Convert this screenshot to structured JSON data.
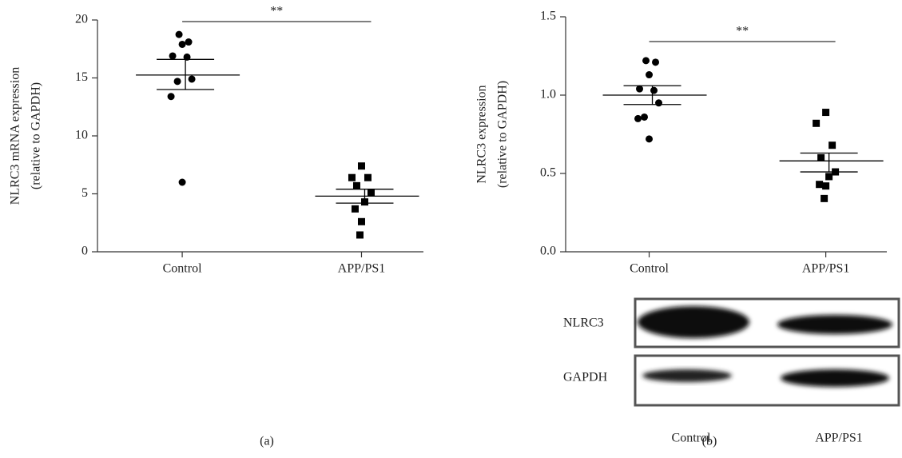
{
  "chart_data": [
    {
      "type": "dotplot",
      "panel_label": "(a)",
      "ylabel": [
        "NLRC3 mRNA expression",
        "(relative to GAPDH)"
      ],
      "categories": [
        "Control",
        "APP/PS1"
      ],
      "markers": [
        "circle",
        "square"
      ],
      "color": "#000000",
      "points": [
        [
          18.75,
          18.1,
          17.9,
          16.9,
          16.8,
          14.9,
          14.7,
          13.4,
          6.0
        ],
        [
          7.4,
          6.4,
          6.4,
          5.7,
          5.1,
          4.3,
          3.7,
          2.6,
          1.45
        ]
      ],
      "mean": [
        15.25,
        4.8
      ],
      "sem_high": [
        16.6,
        5.4
      ],
      "sem_low": [
        14.0,
        4.2
      ],
      "significance": "**",
      "ylim": [
        0,
        20
      ],
      "yticks": [
        0,
        5,
        10,
        15,
        20
      ]
    },
    {
      "type": "dotplot",
      "panel_label": "(b)",
      "ylabel": [
        "NLRC3 expression",
        "(relative to GAPDH)"
      ],
      "categories": [
        "Control",
        "APP/PS1"
      ],
      "markers": [
        "circle",
        "square"
      ],
      "color": "#000000",
      "points": [
        [
          1.22,
          1.21,
          1.13,
          1.04,
          1.03,
          0.95,
          0.86,
          0.85,
          0.72
        ],
        [
          0.89,
          0.82,
          0.68,
          0.6,
          0.51,
          0.48,
          0.43,
          0.42,
          0.34
        ]
      ],
      "mean": [
        1.0,
        0.58
      ],
      "sem_high": [
        1.06,
        0.63
      ],
      "sem_low": [
        0.94,
        0.51
      ],
      "significance": "**",
      "ylim": [
        0,
        1.5
      ],
      "yticks": [
        {
          "value": 0,
          "label": "0.0"
        },
        0.5,
        {
          "value": 1,
          "label": "1.0"
        },
        1.5
      ]
    }
  ],
  "blot": {
    "rows": [
      "NLRC3",
      "GAPDH"
    ],
    "lanes": [
      "Control",
      "APP/PS1"
    ]
  }
}
